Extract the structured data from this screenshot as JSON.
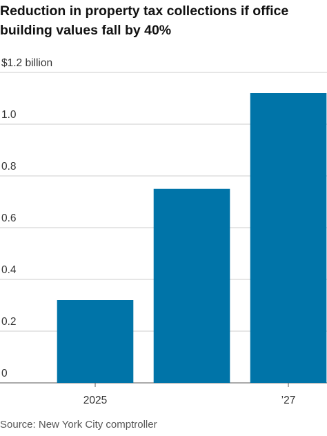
{
  "chart_data": {
    "type": "bar",
    "title": "Reduction in property tax collections if office building values fall by 40%",
    "categories": [
      "2025",
      null,
      "’27"
    ],
    "values": [
      0.32,
      0.75,
      1.12
    ],
    "color": "#0074a8",
    "ylim": [
      0,
      1.2
    ],
    "yticks": [
      0,
      0.2,
      0.4,
      0.6,
      0.8,
      {
        "value": 1,
        "label": "1.0"
      },
      {
        "value": 1.2,
        "label": "$1.2 billion"
      }
    ],
    "grid": true,
    "source": "Source: New York City comptroller"
  }
}
